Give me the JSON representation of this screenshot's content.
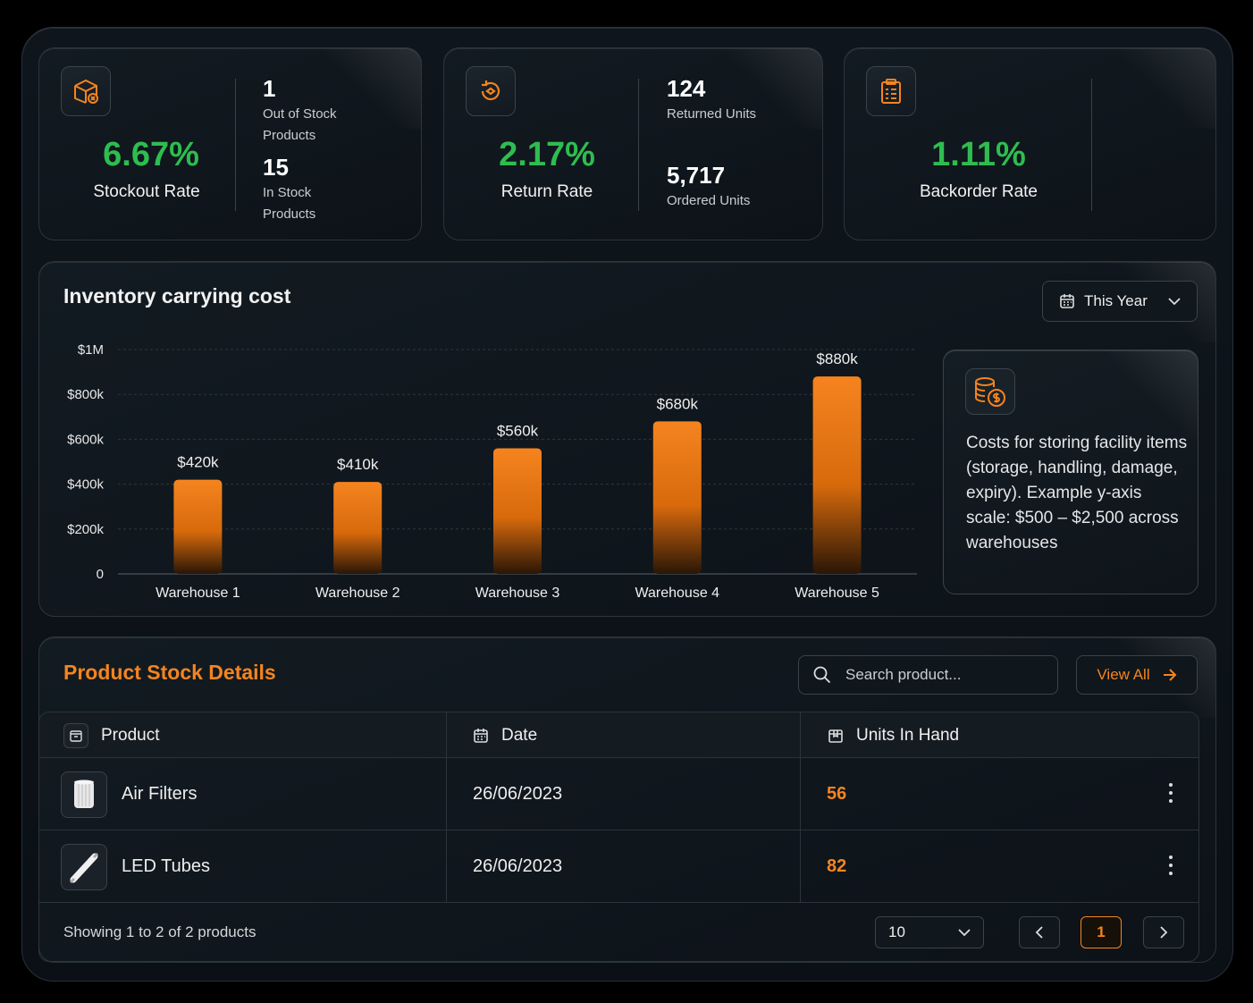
{
  "kpis": [
    {
      "value": "6.67%",
      "label": "Stockout Rate",
      "icon": "box-x-icon",
      "stats": [
        {
          "num": "1",
          "label": "Out of Stock Products"
        },
        {
          "num": "15",
          "label": "In Stock Products"
        }
      ]
    },
    {
      "value": "2.17%",
      "label": "Return Rate",
      "icon": "return-icon",
      "stats": [
        {
          "num": "124",
          "label": "Returned Units"
        },
        {
          "num": "5,717",
          "label": "Ordered Units"
        }
      ]
    },
    {
      "value": "1.11%",
      "label": "Backorder Rate",
      "icon": "clipboard-icon",
      "stats": []
    }
  ],
  "inventory": {
    "title": "Inventory carrying cost",
    "period": "This Year",
    "info": "Costs for storing facility items (storage, handling, damage, expiry). Example y-axis scale: $500 – $2,500 across warehouses"
  },
  "chart_data": {
    "type": "bar",
    "categories": [
      "Warehouse 1",
      "Warehouse 2",
      "Warehouse 3",
      "Warehouse 4",
      "Warehouse 5"
    ],
    "values": [
      420000,
      410000,
      560000,
      680000,
      880000
    ],
    "data_labels": [
      "$420k",
      "$410k",
      "$560k",
      "$680k",
      "$880k"
    ],
    "yticks": [
      "0",
      "$200k",
      "$400k",
      "$600k",
      "$800k",
      "$1M"
    ],
    "ylim": [
      0,
      1000000
    ],
    "grid": true,
    "bar_color": "#f5841f"
  },
  "stock": {
    "title": "Product Stock Details",
    "search_placeholder": "Search product...",
    "view_all": "View All",
    "headers": {
      "product": "Product",
      "date": "Date",
      "units": "Units In Hand"
    },
    "rows": [
      {
        "product": "Air Filters",
        "date": "26/06/2023",
        "units": "56"
      },
      {
        "product": "LED Tubes",
        "date": "26/06/2023",
        "units": "82"
      }
    ],
    "footer": "Showing 1 to 2 of 2 products",
    "page_size": "10",
    "current_page": "1"
  },
  "colors": {
    "accent": "#f5841f",
    "positive": "#2ebd4f"
  }
}
